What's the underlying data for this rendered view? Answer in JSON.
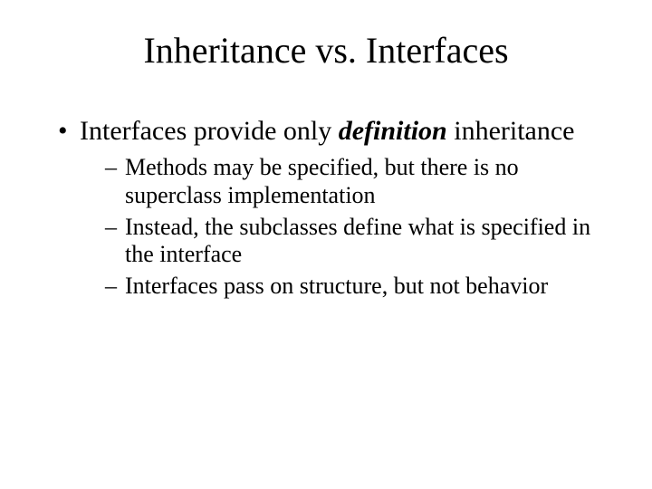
{
  "title": "Inheritance vs. Interfaces",
  "bullet1_pre": "Interfaces provide only ",
  "bullet1_emph": "definition",
  "bullet1_post": " inheritance",
  "sub1": "Methods may be specified, but there is no superclass implementation",
  "sub2": "Instead, the subclasses define what is specified in the interface",
  "sub3": "Interfaces pass on structure, but not behavior",
  "colors": {
    "background": "#ffffff",
    "text": "#000000"
  },
  "fonts": {
    "family": "Times New Roman",
    "title_size_pt": 40,
    "level1_size_pt": 30,
    "level2_size_pt": 26
  }
}
